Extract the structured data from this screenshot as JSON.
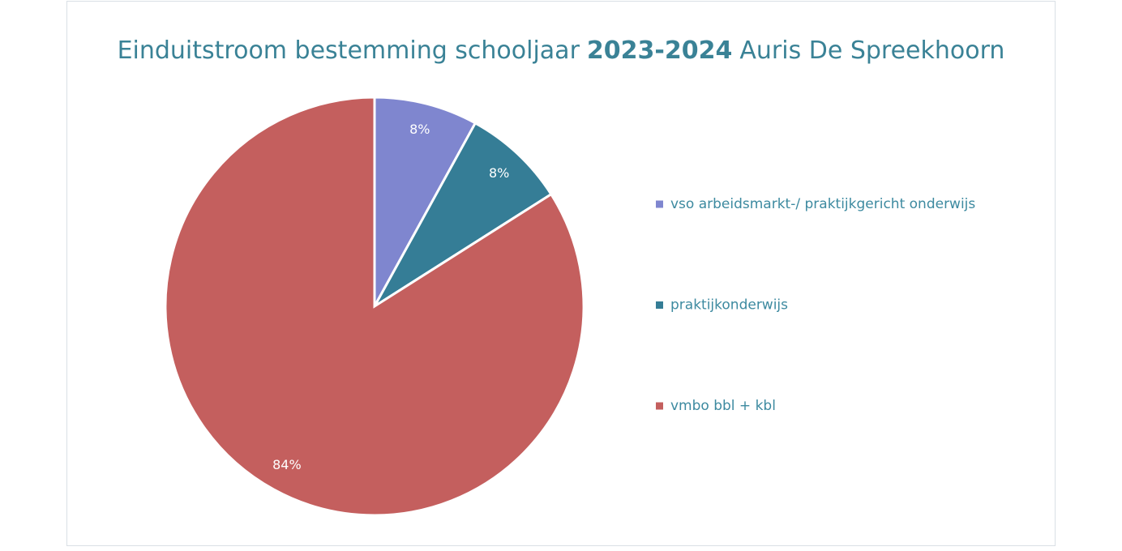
{
  "chart_data": {
    "type": "pie",
    "title": [
      "Einduitstroom bestemming schooljaar",
      "2023-2024",
      "Auris De Spreekhoorn"
    ],
    "categories": [
      "vso arbeidsmarkt-/ praktijkgericht onderwijs",
      "praktijkonderwijs",
      "vmbo bbl + kbl"
    ],
    "values": [
      8,
      8,
      84
    ],
    "value_labels": [
      "8%",
      "8%",
      "84%"
    ],
    "colors": [
      "#7f86cf",
      "#357d96",
      "#c45f5e"
    ],
    "legend": "right"
  }
}
